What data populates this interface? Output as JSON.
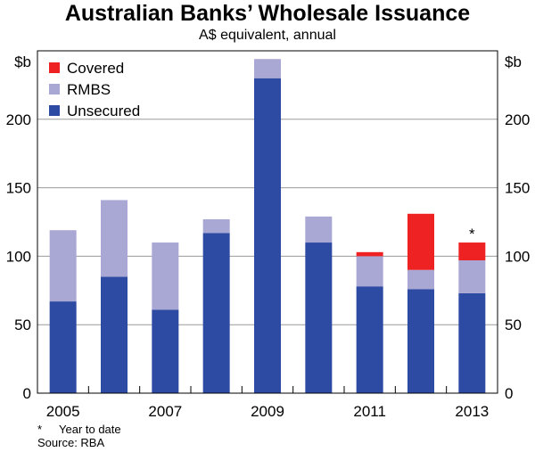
{
  "chart_data": {
    "type": "bar",
    "stacked": true,
    "title": "Australian Banks’ Wholesale Issuance",
    "subtitle": "A$ equivalent, annual",
    "ylabel_left": "$b",
    "ylabel_right": "$b",
    "ylim": [
      0,
      250
    ],
    "yticks": [
      0,
      50,
      100,
      150,
      200
    ],
    "categories": [
      "2005",
      "2006",
      "2007",
      "2008",
      "2009",
      "2010",
      "2011",
      "2012",
      "2013"
    ],
    "xtick_labels": [
      "2005",
      "",
      "2007",
      "",
      "2009",
      "",
      "2011",
      "",
      "2013"
    ],
    "series": [
      {
        "name": "Unsecured",
        "color": "#2e4ba3",
        "values": [
          67,
          85,
          61,
          117,
          230,
          110,
          78,
          76,
          73
        ]
      },
      {
        "name": "RMBS",
        "color": "#a9a7d3",
        "values": [
          52,
          56,
          49,
          10,
          14,
          19,
          22,
          14,
          24
        ]
      },
      {
        "name": "Covered",
        "color": "#ee2222",
        "values": [
          0,
          0,
          0,
          0,
          0,
          0,
          3,
          41,
          13
        ]
      }
    ],
    "legend_order": [
      "Covered",
      "RMBS",
      "Unsecured"
    ],
    "legend_position": "top-left",
    "annotations": [
      {
        "category": "2013",
        "text": "*"
      }
    ],
    "grid": true
  },
  "notes": {
    "star": "*",
    "footnote": "Year to date",
    "source": "Source: RBA"
  }
}
